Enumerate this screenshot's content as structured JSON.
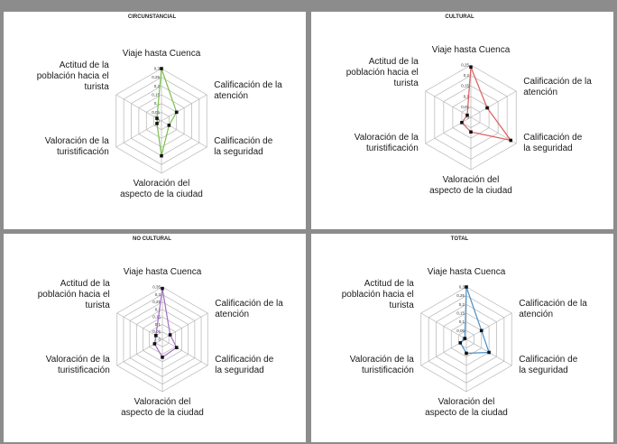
{
  "chart_data": [
    {
      "type": "radar",
      "title": "CIRCUNSTANCIAL",
      "axes": [
        "Viaje hasta Cuenca",
        "Calificación de la atención",
        "Calificación de la seguridad",
        "Valoración del aspecto de la ciudad",
        "Valoración de la turistificación",
        "Actitud de la población hacia el turista"
      ],
      "ticks": [
        "0",
        "0,05",
        "0,1",
        "0,15",
        "0,2",
        "0,25",
        "0,3"
      ],
      "rmax": 0.3,
      "values": [
        0.3,
        0.1,
        0.05,
        0.2,
        0.03,
        0.03
      ],
      "color": "#7cc04a"
    },
    {
      "type": "radar",
      "title": "CULTURAL",
      "axes": [
        "Viaje hasta Cuenca",
        "Calificación de la atención",
        "Calificación de la seguridad",
        "Valoración del aspecto de la ciudad",
        "Valoración de la turistificación",
        "Actitud de la población hacia el turista"
      ],
      "ticks": [
        "0",
        "0,05",
        "0,1",
        "0,15",
        "0,2",
        "0,25"
      ],
      "rmax": 0.25,
      "values": [
        0.24,
        0.09,
        0.22,
        0.07,
        0.05,
        0.02
      ],
      "color": "#e05a5a"
    },
    {
      "type": "radar",
      "title": "NO CULTURAL",
      "axes": [
        "Viaje hasta Cuenca",
        "Calificación de la atención",
        "Calificación de la seguridad",
        "Valoración del aspecto de la ciudad",
        "Valoración de la turistificación",
        "Actitud de la población hacia el turista"
      ],
      "ticks": [
        "0",
        "0,05",
        "0,1",
        "0,15",
        "0,2",
        "0,25",
        "0,3",
        "0,35"
      ],
      "rmax": 0.35,
      "values": [
        0.34,
        0.06,
        0.11,
        0.12,
        0.06,
        0.05
      ],
      "color": "#a46ec8"
    },
    {
      "type": "radar",
      "title": "TOTAL",
      "axes": [
        "Viaje hasta Cuenca",
        "Calificación de la atención",
        "Calificación de la seguridad",
        "Valoración del aspecto de la ciudad",
        "Valoración de la turistificación",
        "Actitud de la población hacia el turista"
      ],
      "ticks": [
        "0",
        "0,05",
        "0,1",
        "0,15",
        "0,2",
        "0,25",
        "0,3"
      ],
      "rmax": 0.3,
      "values": [
        0.3,
        0.1,
        0.15,
        0.08,
        0.04,
        0.01
      ],
      "color": "#4a90c8"
    }
  ]
}
